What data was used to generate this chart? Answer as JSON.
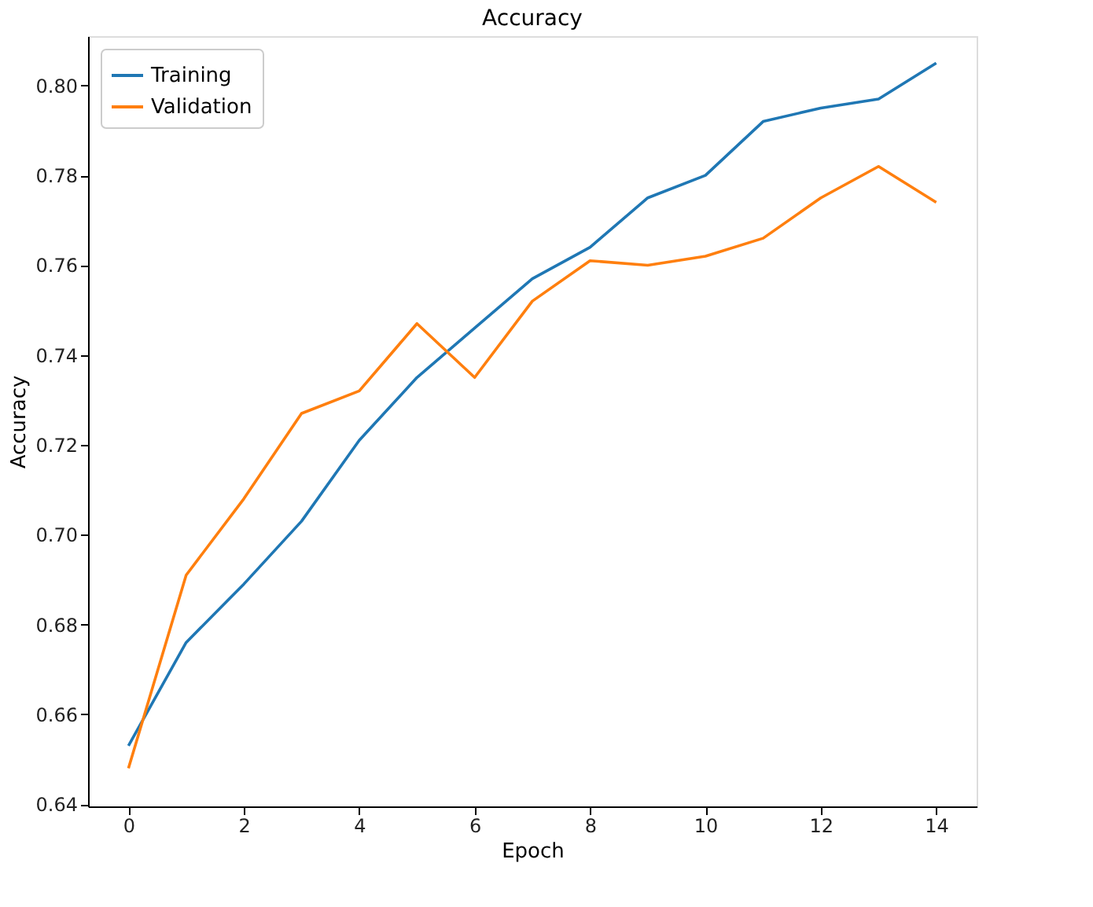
{
  "chart_data": {
    "type": "line",
    "title": "Accuracy",
    "xlabel": "Epoch",
    "ylabel": "Accuracy",
    "x": [
      0,
      1,
      2,
      3,
      4,
      5,
      6,
      7,
      8,
      9,
      10,
      11,
      12,
      13,
      14
    ],
    "series": [
      {
        "name": "Training",
        "color": "#1f77b4",
        "values": [
          0.653,
          0.676,
          0.689,
          0.703,
          0.721,
          0.735,
          0.746,
          0.757,
          0.764,
          0.775,
          0.78,
          0.792,
          0.795,
          0.797,
          0.805
        ]
      },
      {
        "name": "Validation",
        "color": "#ff7f0e",
        "values": [
          0.648,
          0.691,
          0.708,
          0.727,
          0.732,
          0.747,
          0.735,
          0.752,
          0.761,
          0.76,
          0.762,
          0.766,
          0.775,
          0.782,
          0.774
        ]
      }
    ],
    "xlim": [
      -0.7,
      14.7
    ],
    "xticks": [
      0,
      2,
      4,
      6,
      8,
      10,
      12,
      14
    ],
    "ylim": [
      0.6395,
      0.811
    ],
    "yticks": [
      0.64,
      0.66,
      0.68,
      {
        "value": 0.7,
        "label": "0.70"
      },
      0.72,
      0.74,
      0.76,
      0.78,
      {
        "value": 0.8,
        "label": "0.80"
      }
    ],
    "legend": "top left",
    "grid": false,
    "marker": "none",
    "line_style": "solid"
  }
}
